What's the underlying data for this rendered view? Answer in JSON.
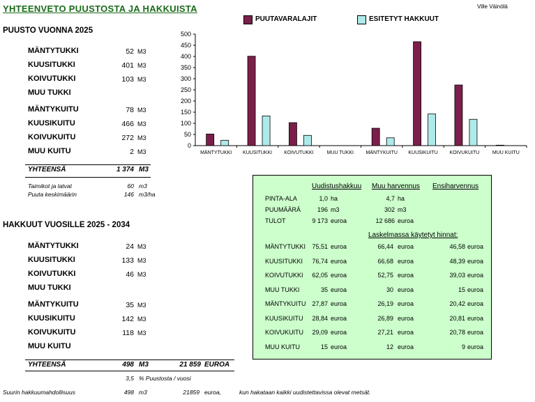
{
  "header": {
    "title": "YHTEENVETO  PUUSTOSTA  JA  HAKKUISTA",
    "author": "Ville Väinölä"
  },
  "puusto": {
    "heading": "PUUSTO VUONNA  2025",
    "rows": [
      {
        "label": "MÄNTYTUKKI",
        "value": "52",
        "unit": "M3"
      },
      {
        "label": "KUUSITUKKI",
        "value": "401",
        "unit": "M3"
      },
      {
        "label": "KOIVUTUKKI",
        "value": "103",
        "unit": "M3"
      },
      {
        "label": "MUU TUKKI",
        "value": "",
        "unit": ""
      },
      {
        "label": "MÄNTYKUITU",
        "value": "78",
        "unit": "M3"
      },
      {
        "label": "KUUSIKUITU",
        "value": "466",
        "unit": "M3"
      },
      {
        "label": "KOIVUKUITU",
        "value": "272",
        "unit": "M3"
      },
      {
        "label": "MUU KUITU",
        "value": "2",
        "unit": "M3"
      }
    ],
    "total_label": "YHTEENSÄ",
    "total_value": "1 374",
    "total_unit": "M3",
    "extra": [
      {
        "label": "Taimikot ja latvat",
        "value": "60",
        "unit": "m3"
      },
      {
        "label": "Puuta keskimäärin",
        "value": "146",
        "unit": "m3/ha"
      }
    ]
  },
  "hakkuut": {
    "heading": "HAKKUUT VUOSILLE  2025 - 2034",
    "rows": [
      {
        "label": "MÄNTYTUKKI",
        "value": "24",
        "unit": "M3"
      },
      {
        "label": "KUUSITUKKI",
        "value": "133",
        "unit": "M3"
      },
      {
        "label": "KOIVUTUKKI",
        "value": "46",
        "unit": "M3"
      },
      {
        "label": "MUU TUKKI",
        "value": "",
        "unit": ""
      },
      {
        "label": "MÄNTYKUITU",
        "value": "35",
        "unit": "M3"
      },
      {
        "label": "KUUSIKUITU",
        "value": "142",
        "unit": "M3"
      },
      {
        "label": "KOIVUKUITU",
        "value": "118",
        "unit": "M3"
      },
      {
        "label": "MUU KUITU",
        "value": "",
        "unit": ""
      }
    ],
    "total_label": "YHTEENSÄ",
    "total_value": "498",
    "total_unit": "M3",
    "total_money": "21 859",
    "total_money_unit": "EUROA",
    "percent_value": "3,5",
    "percent_text": "%  Puustosta / vuosi",
    "footer_label": "Suurin hakkuumahdollisuus",
    "footer_value": "498",
    "footer_unit": "m3",
    "footer_money": "21859",
    "footer_money_unit": "euroa,",
    "footer_note": "kun hakataan kaikki uudistettavissa olevat metsät."
  },
  "panel": {
    "headers": [
      "Uudistushakkuu",
      "Muu harvennus",
      "Ensiharvennus"
    ],
    "info": [
      {
        "label": "PINTA-ALA",
        "c1": "1,0",
        "u1": "ha",
        "c2": "4,7",
        "u2": "ha"
      },
      {
        "label": "PUUMÄÄRÄ",
        "c1": "196",
        "u1": "m3",
        "c2": "302",
        "u2": "m3"
      },
      {
        "label": "TULOT",
        "c1": "9 173",
        "u1": "euroa",
        "c2": "12 686",
        "u2": "euroa"
      }
    ],
    "prices_heading": "Laskelmassa  käytetyt  hinnat:",
    "prices": [
      {
        "label": "MÄNTYTUKKI",
        "v1": "75,51",
        "v2": "66,44",
        "v3": "46,58"
      },
      {
        "label": "KUUSITUKKI",
        "v1": "76,74",
        "v2": "66,68",
        "v3": "48,39"
      },
      {
        "label": "KOIVUTUKKI",
        "v1": "62,05",
        "v2": "52,75",
        "v3": "39,03"
      },
      {
        "label": "MUU TUKKI",
        "v1": "35",
        "v2": "30",
        "v3": "15"
      },
      {
        "label": "MÄNTYKUITU",
        "v1": "27,87",
        "v2": "26,19",
        "v3": "20,42"
      },
      {
        "label": "KUUSIKUITU",
        "v1": "28,84",
        "v2": "26,89",
        "v3": "20,81"
      },
      {
        "label": "KOIVUKUITU",
        "v1": "29,09",
        "v2": "27,21",
        "v3": "20,78"
      },
      {
        "label": "MUU KUITU",
        "v1": "15",
        "v2": "12",
        "v3": "9"
      }
    ],
    "euro_unit": "euroa"
  },
  "chart_data": {
    "type": "bar",
    "categories": [
      "MÄNTYTUKKI",
      "KUUSITUKKI",
      "KOIVUTUKKI",
      "MUU TUKKI",
      "MÄNTYKUITU",
      "KUUSIKUITU",
      "KOIVUKUITU",
      "MUU KUITU"
    ],
    "series": [
      {
        "name": "PUUTAVARALAJIT",
        "color": "#7b1f4a",
        "values": [
          52,
          401,
          103,
          0,
          78,
          466,
          272,
          2
        ]
      },
      {
        "name": "ESITETYT  HAKKUUT",
        "color": "#aeeaea",
        "values": [
          24,
          133,
          46,
          0,
          35,
          142,
          118,
          0
        ]
      }
    ],
    "ylim": [
      0,
      500
    ],
    "yticks": [
      0,
      50,
      100,
      150,
      200,
      250,
      300,
      350,
      400,
      450,
      500
    ],
    "legend": "top"
  }
}
